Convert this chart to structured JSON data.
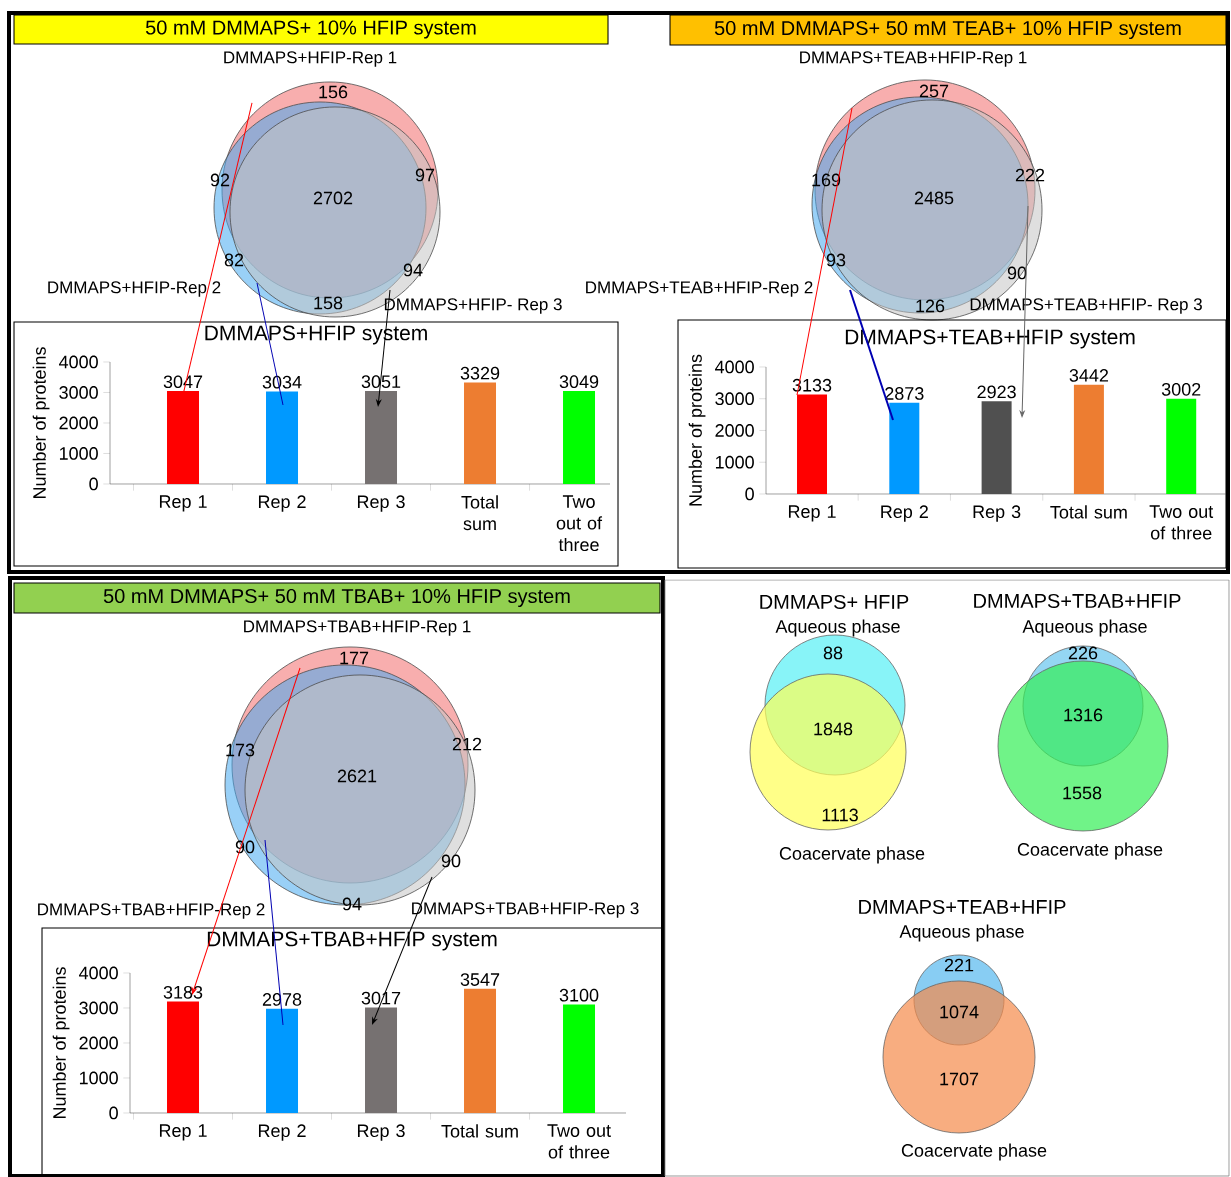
{
  "chart_data": [
    {
      "type": "other",
      "title": "50 mM DMMAPS+ 10% HFIP system",
      "categories": [
        "DMMAPS+HFIP-Rep 1",
        "DMMAPS+HFIP-Rep 2",
        "DMMAPS+HFIP- Rep 3"
      ],
      "colors": [
        "#f26b6b",
        "#45aaf0",
        "#c4c4c4"
      ],
      "annotations": [
        "156",
        "97",
        "2702",
        "92",
        "82",
        "94",
        "158"
      ]
    },
    {
      "type": "bar",
      "title": "DMMAPS+HFIP system",
      "ylabel": "Number of proteins",
      "categories": [
        "Rep 1",
        "Rep 2",
        "Rep 3",
        "Total sum",
        "Two out of three"
      ],
      "values": [
        3047,
        3034,
        3051,
        3329,
        3049
      ],
      "colors": [
        "#ff0000",
        "#0099ff",
        "#767171",
        "#ed7d31",
        "#00ff00"
      ],
      "ylim": [
        0,
        4000
      ],
      "yticks": [
        0,
        1000,
        2000,
        3000,
        4000
      ],
      "data_labels": true
    },
    {
      "type": "other",
      "title": "50 mM DMMAPS+ 50 mM TEAB+ 10% HFIP system",
      "categories": [
        "DMMAPS+TEAB+HFIP-Rep 1",
        "DMMAPS+TEAB+HFIP-Rep 2",
        "DMMAPS+TEAB+HFIP- Rep 3"
      ],
      "colors": [
        "#f26b6b",
        "#45aaf0",
        "#c4c4c4"
      ],
      "annotations": [
        "257",
        "222",
        "2485",
        "169",
        "93",
        "90",
        "126"
      ]
    },
    {
      "type": "bar",
      "title": "DMMAPS+TEAB+HFIP system",
      "ylabel": "Number of proteins",
      "categories": [
        "Rep 1",
        "Rep 2",
        "Rep 3",
        "Total sum",
        "Two out of three"
      ],
      "values": [
        3133,
        2873,
        2923,
        3442,
        3002
      ],
      "colors": [
        "#ff0000",
        "#0099ff",
        "#505050",
        "#ed7d31",
        "#00ff00"
      ],
      "ylim": [
        0,
        4000
      ],
      "yticks": [
        0,
        1000,
        2000,
        3000,
        4000
      ],
      "data_labels": true
    },
    {
      "type": "other",
      "title": "50 mM DMMAPS+ 50 mM TBAB+ 10% HFIP system",
      "categories": [
        "DMMAPS+TBAB+HFIP-Rep 1",
        "DMMAPS+TBAB+HFIP-Rep 2",
        "DMMAPS+TBAB+HFIP-Rep 3"
      ],
      "colors": [
        "#f26b6b",
        "#45aaf0",
        "#c4c4c4"
      ],
      "annotations": [
        "177",
        "212",
        "2621",
        "173",
        "90",
        "90",
        "94"
      ]
    },
    {
      "type": "bar",
      "title": "DMMAPS+TBAB+HFIP system",
      "ylabel": "Number of proteins",
      "categories": [
        "Rep 1",
        "Rep 2",
        "Rep 3",
        "Total sum",
        "Two out of three"
      ],
      "values": [
        3183,
        2978,
        3017,
        3547,
        3100
      ],
      "colors": [
        "#ff0000",
        "#0099ff",
        "#767171",
        "#ed7d31",
        "#00ff00"
      ],
      "ylim": [
        0,
        4000
      ],
      "yticks": [
        0,
        1000,
        2000,
        3000,
        4000
      ],
      "data_labels": true
    },
    {
      "type": "other",
      "title": "DMMAPS+ HFIP",
      "categories": [
        "Aqueous phase",
        "Coacervate phase"
      ],
      "colors": [
        "#55f0f5",
        "#ffff55"
      ],
      "annotations": [
        "88",
        "1848",
        "1113"
      ]
    },
    {
      "type": "other",
      "title": "DMMAPS+TBAB+HFIP",
      "categories": [
        "Aqueous phase",
        "Coacervate phase"
      ],
      "colors": [
        "#66c4ee",
        "#33ee55"
      ],
      "annotations": [
        "226",
        "1316",
        "1558"
      ]
    },
    {
      "type": "other",
      "title": "DMMAPS+TEAB+HFIP",
      "categories": [
        "Aqueous phase",
        "Coacervate phase"
      ],
      "colors": [
        "#55b8ee",
        "#f58a4a"
      ],
      "annotations": [
        "221",
        "1074",
        "1707"
      ]
    }
  ]
}
